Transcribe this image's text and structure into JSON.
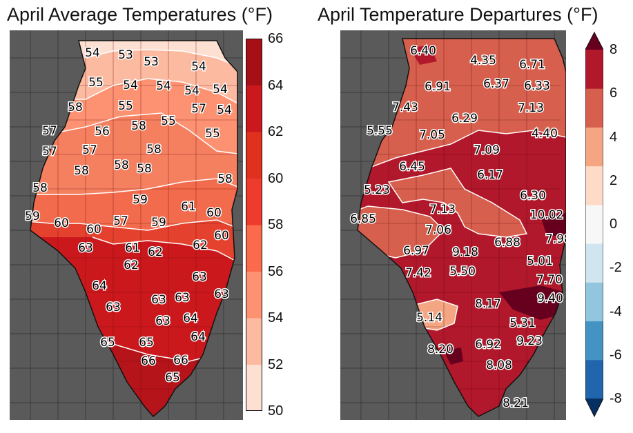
{
  "left_panel": {
    "title": "April Average Temperatures (°F)",
    "colorbar": {
      "ticks": [
        "66",
        "64",
        "62",
        "60",
        "58",
        "56",
        "54",
        "52",
        "50"
      ],
      "colors": [
        "#fee0d2",
        "#fcbba1",
        "#fc9272",
        "#fb6a4a",
        "#ef3b2c",
        "#e0301e",
        "#cb181d",
        "#a50f15"
      ]
    },
    "labels": [
      "54",
      "53",
      "53",
      "54",
      "55",
      "54",
      "54",
      "54",
      "54",
      "58",
      "55",
      "57",
      "54",
      "57",
      "56",
      "58",
      "55",
      "55",
      "57",
      "57",
      "58",
      "58",
      "58",
      "58",
      "58",
      "58",
      "59",
      "61",
      "60",
      "59",
      "60",
      "60",
      "57",
      "59",
      "60",
      "63",
      "61",
      "62",
      "62",
      "62",
      "63",
      "64",
      "63",
      "63",
      "63",
      "63",
      "63",
      "64",
      "65",
      "65",
      "64",
      "66",
      "66",
      "65"
    ],
    "regions": [
      {
        "label": "50-52",
        "color": "#fee0d2"
      },
      {
        "label": "52-54",
        "color": "#fcbba1"
      },
      {
        "label": "54-56",
        "color": "#fc9272"
      },
      {
        "label": "56-58",
        "color": "#f58060"
      },
      {
        "label": "58-60",
        "color": "#f26b4c"
      },
      {
        "label": "60-62",
        "color": "#e4412e"
      },
      {
        "label": "62-64",
        "color": "#cb181d"
      },
      {
        "label": "64-66",
        "color": "#b5141a"
      }
    ]
  },
  "right_panel": {
    "title": "April Temperature Departures (°F)",
    "colorbar": {
      "ticks": [
        "8",
        "6",
        "4",
        "2",
        "0",
        "-2",
        "-4",
        "-6",
        "-8"
      ],
      "colors": [
        "#053061",
        "#2166ac",
        "#4393c3",
        "#92c5de",
        "#d1e5f0",
        "#f7f7f7",
        "#fddbc7",
        "#f4a582",
        "#d6604d",
        "#b2182b",
        "#67001f"
      ]
    },
    "labels": [
      "6.40",
      "4.35",
      "6.71",
      "6.91",
      "6.37",
      "6.33",
      "7.43",
      "7.13",
      "6.29",
      "5.55",
      "7.05",
      "4.40",
      "7.09",
      "6.45",
      "6.17",
      "5.23",
      "6.30",
      "7.13",
      "10.02",
      "6.85",
      "7.06",
      "7.98",
      "6.88",
      "6.97",
      "9.18",
      "5.01",
      "7.42",
      "5.50",
      "7.70",
      "9.40",
      "8.17",
      "5.14",
      "5.31",
      "9.23",
      "8.20",
      "6.92",
      "8.08",
      "8.21"
    ],
    "regions": [
      {
        "label": "4-6",
        "color": "#d6604d"
      },
      {
        "label": "6-8",
        "color": "#b2182b"
      },
      {
        "label": ">8",
        "color": "#67001f"
      },
      {
        "label": "2-4",
        "color": "#f4a582"
      }
    ]
  }
}
